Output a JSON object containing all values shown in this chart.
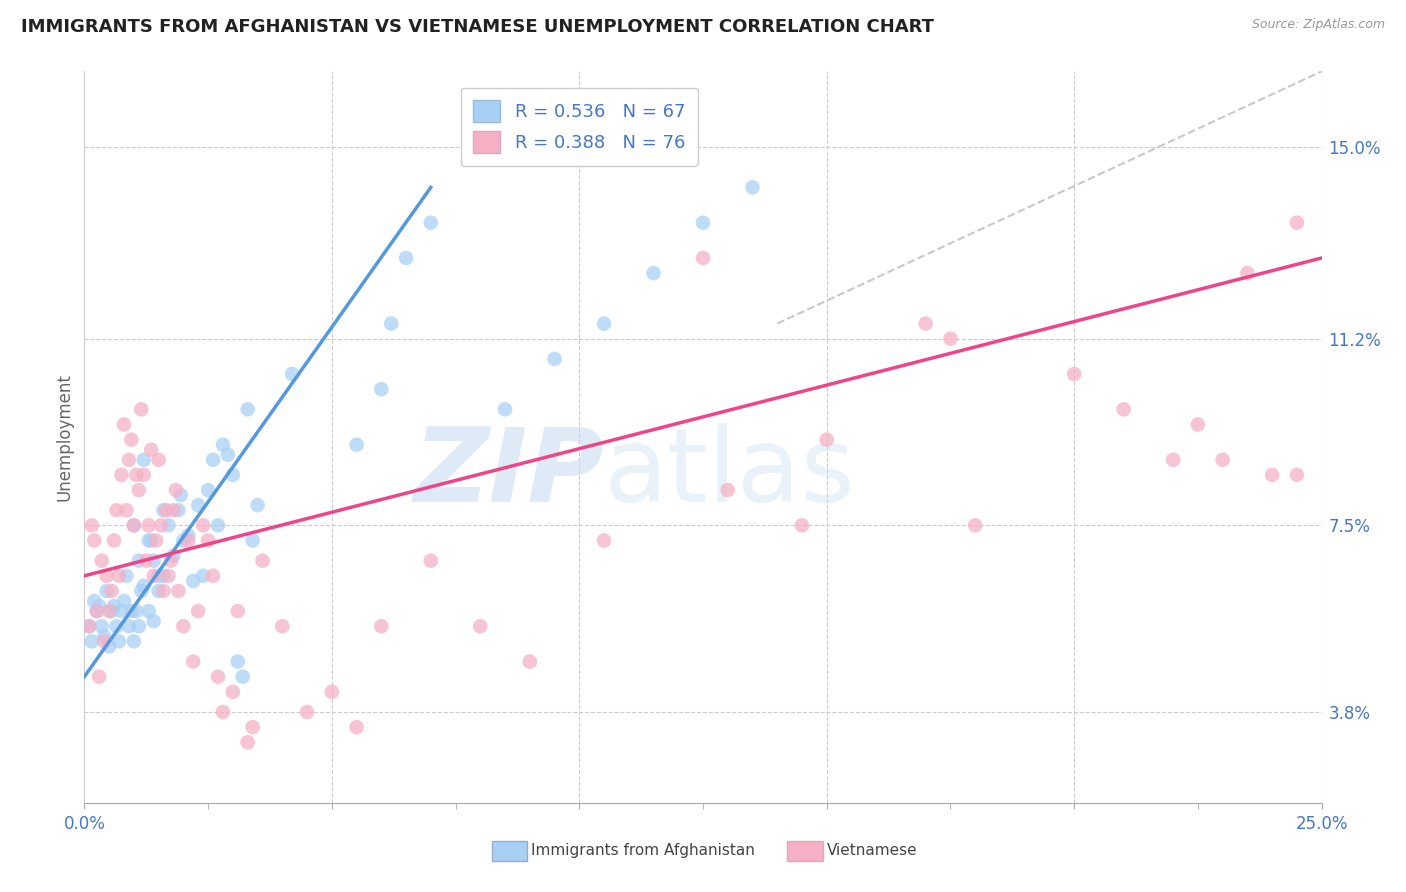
{
  "title": "IMMIGRANTS FROM AFGHANISTAN VS VIETNAMESE UNEMPLOYMENT CORRELATION CHART",
  "source": "Source: ZipAtlas.com",
  "ylabel": "Unemployment",
  "ytick_labels": [
    "3.8%",
    "7.5%",
    "11.2%",
    "15.0%"
  ],
  "ytick_values": [
    3.8,
    7.5,
    11.2,
    15.0
  ],
  "xlim": [
    0.0,
    25.0
  ],
  "ylim": [
    2.0,
    16.5
  ],
  "color_afghanistan": "#a8d0f5",
  "color_vietnamese": "#f5b0c5",
  "color_line_afghanistan": "#5599dd",
  "color_line_vietnamese": "#ee4488",
  "color_dashed": "#bbbbbb",
  "color_grid": "#cccccc",
  "color_axis_text": "#4477cc",
  "af_line_x0": 0.0,
  "af_line_y0": 4.5,
  "af_line_x1": 7.0,
  "af_line_y1": 14.2,
  "vi_line_x0": 0.0,
  "vi_line_y0": 6.5,
  "vi_line_x1": 25.0,
  "vi_line_y1": 12.8,
  "dash_x0": 14.0,
  "dash_y0": 11.5,
  "dash_x1": 25.0,
  "dash_y1": 16.5,
  "af_x": [
    0.1,
    0.15,
    0.2,
    0.25,
    0.3,
    0.35,
    0.4,
    0.45,
    0.5,
    0.55,
    0.6,
    0.65,
    0.7,
    0.75,
    0.8,
    0.85,
    0.9,
    0.95,
    1.0,
    1.0,
    1.05,
    1.1,
    1.1,
    1.15,
    1.2,
    1.2,
    1.3,
    1.3,
    1.35,
    1.4,
    1.4,
    1.5,
    1.5,
    1.6,
    1.6,
    1.7,
    1.8,
    1.9,
    1.95,
    2.0,
    2.1,
    2.2,
    2.3,
    2.4,
    2.5,
    2.6,
    2.7,
    2.8,
    2.9,
    3.0,
    3.1,
    3.2,
    3.3,
    3.4,
    3.5,
    4.2,
    5.5,
    6.0,
    6.2,
    6.5,
    7.0,
    8.5,
    9.5,
    10.5,
    11.5,
    12.5,
    13.5
  ],
  "af_y": [
    5.5,
    5.2,
    6.0,
    5.8,
    5.9,
    5.5,
    5.3,
    6.2,
    5.1,
    5.8,
    5.9,
    5.5,
    5.2,
    5.8,
    6.0,
    6.5,
    5.5,
    5.8,
    5.2,
    7.5,
    5.8,
    5.5,
    6.8,
    6.2,
    6.3,
    8.8,
    7.2,
    5.8,
    7.2,
    6.8,
    5.6,
    6.5,
    6.2,
    7.8,
    6.5,
    7.5,
    6.9,
    7.8,
    8.1,
    7.2,
    7.3,
    6.4,
    7.9,
    6.5,
    8.2,
    8.8,
    7.5,
    9.1,
    8.9,
    8.5,
    4.8,
    4.5,
    9.8,
    7.2,
    7.9,
    10.5,
    9.1,
    10.2,
    11.5,
    12.8,
    13.5,
    9.8,
    10.8,
    11.5,
    12.5,
    13.5,
    14.2
  ],
  "vi_x": [
    0.1,
    0.15,
    0.2,
    0.25,
    0.3,
    0.35,
    0.4,
    0.45,
    0.5,
    0.55,
    0.6,
    0.65,
    0.7,
    0.75,
    0.8,
    0.85,
    0.9,
    0.95,
    1.0,
    1.05,
    1.1,
    1.15,
    1.2,
    1.25,
    1.3,
    1.35,
    1.4,
    1.45,
    1.5,
    1.55,
    1.6,
    1.65,
    1.7,
    1.75,
    1.8,
    1.85,
    1.9,
    2.0,
    2.1,
    2.2,
    2.3,
    2.4,
    2.5,
    2.6,
    2.7,
    2.8,
    3.0,
    3.1,
    3.3,
    3.4,
    3.6,
    4.0,
    4.5,
    5.0,
    5.5,
    6.0,
    7.0,
    8.0,
    9.0,
    10.5,
    13.0,
    14.5,
    17.5,
    18.0,
    20.0,
    22.5,
    23.0,
    24.0,
    24.5,
    12.5,
    15.0,
    17.0,
    21.0,
    22.0,
    23.5,
    24.5
  ],
  "vi_y": [
    5.5,
    7.5,
    7.2,
    5.8,
    4.5,
    6.8,
    5.2,
    6.5,
    5.8,
    6.2,
    7.2,
    7.8,
    6.5,
    8.5,
    9.5,
    7.8,
    8.8,
    9.2,
    7.5,
    8.5,
    8.2,
    9.8,
    8.5,
    6.8,
    7.5,
    9.0,
    6.5,
    7.2,
    8.8,
    7.5,
    6.2,
    7.8,
    6.5,
    6.8,
    7.8,
    8.2,
    6.2,
    5.5,
    7.2,
    4.8,
    5.8,
    7.5,
    7.2,
    6.5,
    4.5,
    3.8,
    4.2,
    5.8,
    3.2,
    3.5,
    6.8,
    5.5,
    3.8,
    4.2,
    3.5,
    5.5,
    6.8,
    5.5,
    4.8,
    7.2,
    8.2,
    7.5,
    11.2,
    7.5,
    10.5,
    9.5,
    8.8,
    8.5,
    8.5,
    12.8,
    9.2,
    11.5,
    9.8,
    8.8,
    12.5,
    13.5
  ]
}
